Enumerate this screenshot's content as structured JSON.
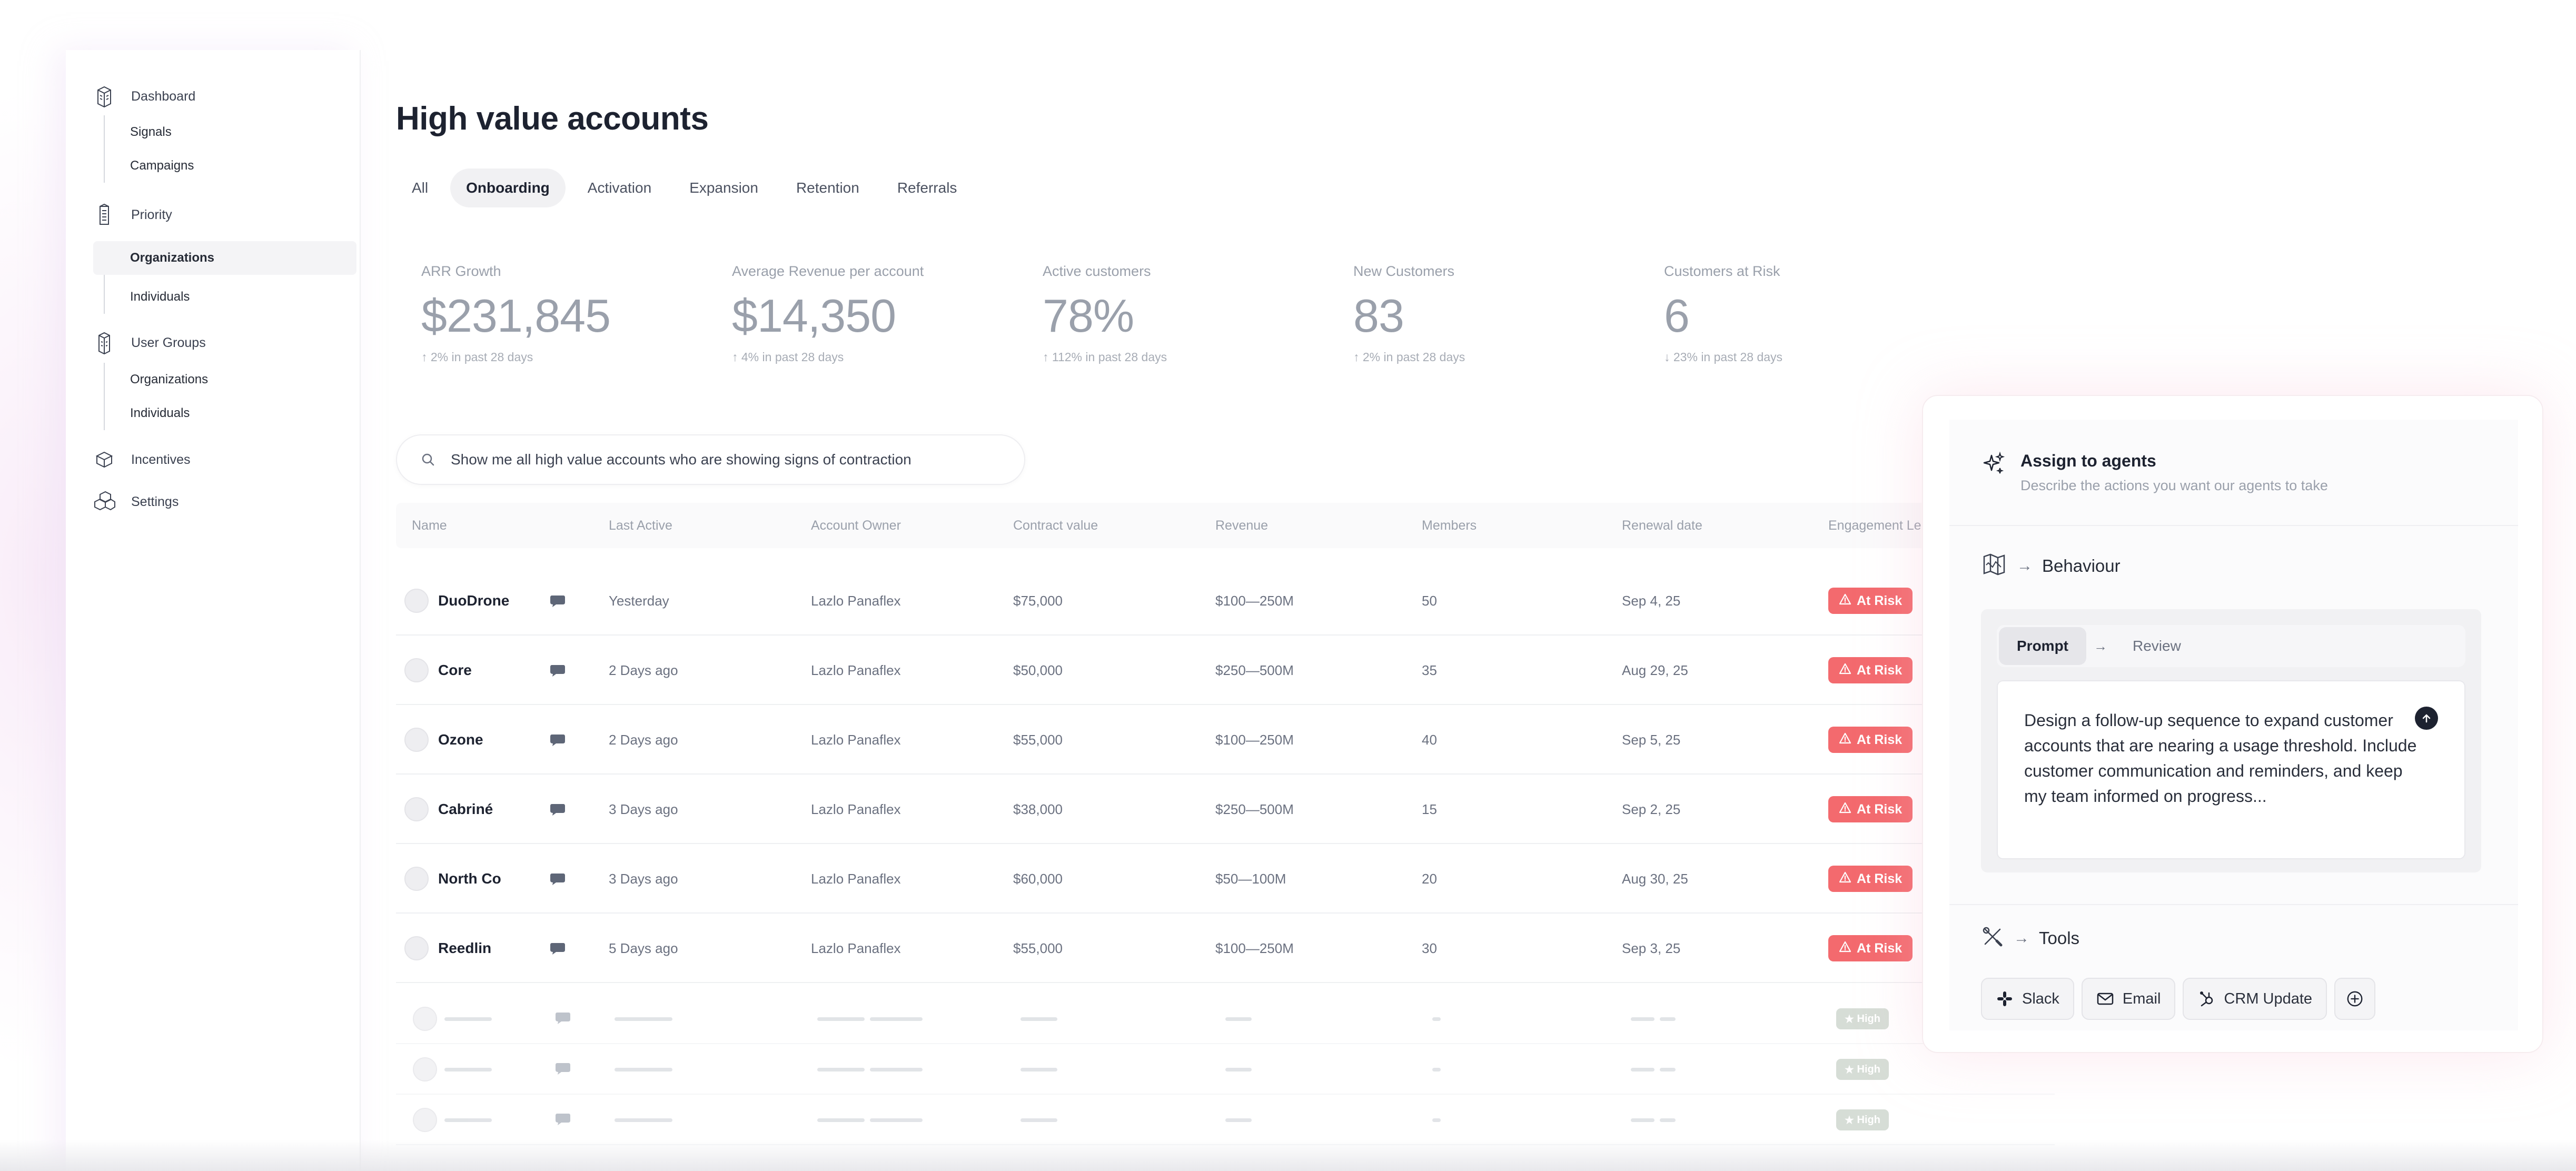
{
  "sidebar": {
    "sections": [
      {
        "label": "Dashboard",
        "icon": "dashboard-icon",
        "items": [
          {
            "label": "Signals"
          },
          {
            "label": "Campaigns"
          }
        ]
      },
      {
        "label": "Priority",
        "icon": "priority-icon",
        "items": [
          {
            "label": "Organizations",
            "active": true
          },
          {
            "label": "Individuals"
          }
        ]
      },
      {
        "label": "User Groups",
        "icon": "user-groups-icon",
        "items": [
          {
            "label": "Organizations"
          },
          {
            "label": "Individuals"
          }
        ]
      },
      {
        "label": "Incentives",
        "icon": "incentives-icon",
        "items": []
      },
      {
        "label": "Settings",
        "icon": "settings-icon",
        "items": []
      }
    ]
  },
  "page": {
    "title": "High value accounts",
    "tabs": [
      {
        "label": "All"
      },
      {
        "label": "Onboarding",
        "active": true
      },
      {
        "label": "Activation"
      },
      {
        "label": "Expansion"
      },
      {
        "label": "Retention"
      },
      {
        "label": "Referrals"
      }
    ]
  },
  "stats": [
    {
      "label": "ARR Growth",
      "value": "$231,845",
      "delta": "↑ 2% in past 28 days"
    },
    {
      "label": "Average Revenue per account",
      "value": "$14,350",
      "delta": "↑ 4% in past 28 days"
    },
    {
      "label": "Active customers",
      "value": "78%",
      "delta": "↑ 112% in past 28 days"
    },
    {
      "label": "New Customers",
      "value": "83",
      "delta": "↑ 2% in past 28 days"
    },
    {
      "label": "Customers at Risk",
      "value": "6",
      "delta": "↓ 23% in past 28 days"
    }
  ],
  "search": {
    "value": "Show me all high value accounts who are showing signs of contraction"
  },
  "table": {
    "columns": [
      "Name",
      "Last Active",
      "Account Owner",
      "Contract value",
      "Revenue",
      "Members",
      "Renewal date",
      "Engagement Le"
    ],
    "rows": [
      {
        "name": "DuoDrone",
        "last_active": "Yesterday",
        "owner": "Lazlo Panaflex",
        "contract": "$75,000",
        "revenue": "$100—250M",
        "members": "50",
        "renewal": "Sep 4, 25",
        "engagement": "At Risk"
      },
      {
        "name": "Core",
        "last_active": "2 Days ago",
        "owner": "Lazlo Panaflex",
        "contract": "$50,000",
        "revenue": "$250—500M",
        "members": "35",
        "renewal": "Aug 29, 25",
        "engagement": "At Risk"
      },
      {
        "name": "Ozone",
        "last_active": "2 Days ago",
        "owner": "Lazlo Panaflex",
        "contract": "$55,000",
        "revenue": "$100—250M",
        "members": "40",
        "renewal": "Sep 5, 25",
        "engagement": "At Risk"
      },
      {
        "name": "Cabriné",
        "last_active": "3 Days ago",
        "owner": "Lazlo Panaflex",
        "contract": "$38,000",
        "revenue": "$250—500M",
        "members": "15",
        "renewal": "Sep 2, 25",
        "engagement": "At Risk"
      },
      {
        "name": "North Co",
        "last_active": "3 Days ago",
        "owner": "Lazlo Panaflex",
        "contract": "$60,000",
        "revenue": "$50—100M",
        "members": "20",
        "renewal": "Aug 30, 25",
        "engagement": "At Risk"
      },
      {
        "name": "Reedlin",
        "last_active": "5 Days ago",
        "owner": "Lazlo Panaflex",
        "contract": "$55,000",
        "revenue": "$100—250M",
        "members": "30",
        "renewal": "Sep 3, 25",
        "engagement": "At Risk"
      }
    ],
    "ghost_rows": [
      {
        "engagement": "High"
      },
      {
        "engagement": "High"
      },
      {
        "engagement": "High"
      }
    ]
  },
  "panel": {
    "title": "Assign to agents",
    "subtitle": "Describe the actions you want our agents to take",
    "behaviour_label": "Behaviour",
    "steps": [
      "Prompt",
      "Review"
    ],
    "prompt_text": "Design a follow-up sequence to expand customer accounts that are nearing a usage threshold. Include customer communication and reminders, and keep my team informed on progress...",
    "tools_label": "Tools",
    "tools": [
      {
        "label": "Slack",
        "icon": "slack-icon"
      },
      {
        "label": "Email",
        "icon": "email-icon"
      },
      {
        "label": "CRM Update",
        "icon": "crm-icon"
      }
    ]
  },
  "colors": {
    "risk": "#f36a6e",
    "high": "#c9d2c9",
    "accent": "#1d2230"
  }
}
